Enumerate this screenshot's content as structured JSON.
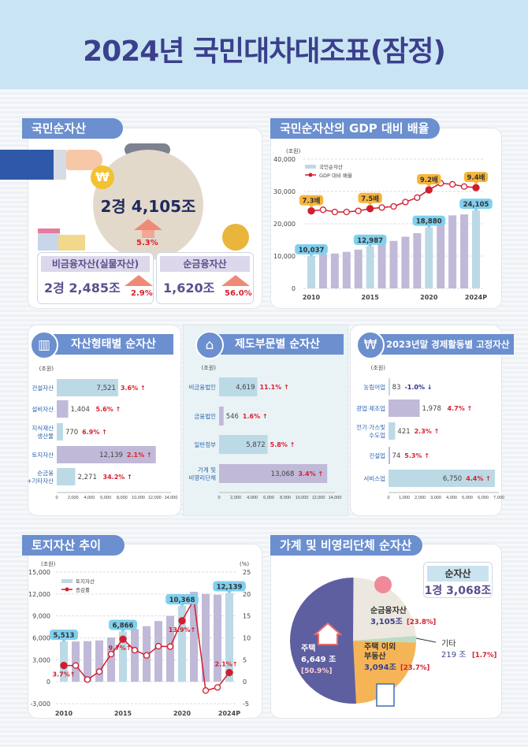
{
  "title": "2024년 국민대차대조표(잠정)",
  "net_assets": {
    "header": "국민순자산",
    "total": "2경 4,105조",
    "total_change": "5.3%",
    "non_financial": {
      "label": "비금융자산(실물자산)",
      "value": "2경 2,485조",
      "change": "2.9%"
    },
    "net_financial": {
      "label": "순금융자산",
      "value": "1,620조",
      "change": "56.0%"
    }
  },
  "panel_headers": {
    "gdp": "국민순자산의 GDP 대비 배율",
    "by_type": "자산형태별 순자산",
    "by_sector": "제도부문별 순자산",
    "by_industry": "2023년말 경제활동별 고정자산",
    "land": "토지자산 추이",
    "household": "가계 및 비영리단체 순자산"
  },
  "colors": {
    "accent": "#6b8fcf",
    "bar_blue": "#bcd9e6",
    "bar_purple": "#c0b9d8",
    "red": "#d8202f",
    "navy": "#3b3f8c"
  },
  "household_total": {
    "label": "순자산",
    "value": "1경 3,068조"
  },
  "chart_data": [
    {
      "id": "gdp",
      "type": "bar+line",
      "title": "국민순자산의 GDP 대비 배율",
      "ylabel": "(조원)",
      "ylim": [
        0,
        40000
      ],
      "yticks": [
        "0",
        "10,000",
        "20,000",
        "30,000",
        "40,000"
      ],
      "x": [
        "2010",
        "2011",
        "2012",
        "2013",
        "2014",
        "2015",
        "2016",
        "2017",
        "2018",
        "2019",
        "2020",
        "2021",
        "2022",
        "2023",
        "2024P"
      ],
      "xtick_labels": [
        "2010",
        "2015",
        "2020",
        "2024P"
      ],
      "bar_series": {
        "name": "국민순자산",
        "values": [
          10037,
          10600,
          10800,
          11300,
          12000,
          12987,
          13900,
          14700,
          16000,
          17100,
          18880,
          21900,
          22600,
          22900,
          24105
        ]
      },
      "line_series": {
        "name": "GDP 대비 배율",
        "unit": "배",
        "values": [
          7.3,
          7.4,
          7.2,
          7.2,
          7.3,
          7.5,
          7.6,
          7.7,
          8.1,
          8.5,
          9.2,
          9.8,
          9.7,
          9.5,
          9.4
        ]
      },
      "bar_labels": {
        "0": "10,037",
        "5": "12,987",
        "10": "18,880",
        "14": "24,105"
      },
      "line_labels": {
        "0": "7.3배",
        "5": "7.5배",
        "10": "9.2배",
        "14": "9.4배"
      },
      "legend": "top-left"
    },
    {
      "id": "by_type",
      "type": "hbar",
      "ylabel": "(조원)",
      "xlim": [
        0,
        14000
      ],
      "xticks": [
        "0",
        "2,000",
        "4,000",
        "6,000",
        "8,000",
        "10,000",
        "12,000",
        "14,000"
      ],
      "categories": [
        "건설자산",
        "설비자산",
        "지식재산\n생산물",
        "토지자산",
        "순금융\n+기타자산"
      ],
      "values": [
        7521,
        1404,
        770,
        12139,
        2271
      ],
      "value_labels": [
        "7,521",
        "1,404",
        "770",
        "12,139",
        "2,271"
      ],
      "changes": [
        "3.6%",
        "5.6%",
        "6.9%",
        "2.1%",
        "34.2%"
      ],
      "direction": [
        "up",
        "up",
        "up",
        "up",
        "up"
      ]
    },
    {
      "id": "by_sector",
      "type": "hbar",
      "ylabel": "(조원)",
      "xlim": [
        0,
        14000
      ],
      "xticks": [
        "0",
        "2,000",
        "4,000",
        "6,000",
        "8,000",
        "10,000",
        "12,000",
        "14,000"
      ],
      "categories": [
        "비금융법인",
        "금융법인",
        "일반정부",
        "가계 및\n비영리단체"
      ],
      "values": [
        4619,
        546,
        5872,
        13068
      ],
      "value_labels": [
        "4,619",
        "546",
        "5,872",
        "13,068"
      ],
      "changes": [
        "11.1%",
        "1.6%",
        "5.8%",
        "3.4%"
      ],
      "direction": [
        "up",
        "up",
        "up",
        "up"
      ]
    },
    {
      "id": "by_industry",
      "type": "hbar",
      "ylabel": "(조원)",
      "xlim": [
        0,
        7000
      ],
      "xticks": [
        "0",
        "1,000",
        "2,000",
        "3,000",
        "4,000",
        "5,000",
        "6,000",
        "7,000"
      ],
      "categories": [
        "농림어업",
        "광업·제조업",
        "전기·가스및\n수도업",
        "건설업",
        "서비스업"
      ],
      "values": [
        83,
        1978,
        421,
        74,
        6750
      ],
      "value_labels": [
        "83",
        "1,978",
        "421",
        "74",
        "6,750"
      ],
      "changes": [
        "-1.0%",
        "4.7%",
        "2.3%",
        "5.3%",
        "4.4%"
      ],
      "direction": [
        "down",
        "up",
        "up",
        "up",
        "up"
      ]
    },
    {
      "id": "land",
      "type": "bar+line",
      "title": "토지자산 추이",
      "ylabel": "(조원)",
      "y2label": "(%)",
      "ylim": [
        -3000,
        15000
      ],
      "y2lim": [
        -5,
        25
      ],
      "yticks": [
        "-3,000",
        "0",
        "3,000",
        "6,000",
        "9,000",
        "12,000",
        "15,000"
      ],
      "y2ticks": [
        "-5",
        "0",
        "5",
        "10",
        "15",
        "20",
        "25"
      ],
      "x": [
        "2010",
        "2011",
        "2012",
        "2013",
        "2014",
        "2015",
        "2016",
        "2017",
        "2018",
        "2019",
        "2020",
        "2021",
        "2022",
        "2023",
        "2024P"
      ],
      "xtick_labels": [
        "2010",
        "2015",
        "2020",
        "2024P"
      ],
      "bar_series": {
        "name": "토지자산",
        "values": [
          5513,
          5500,
          5550,
          5650,
          6050,
          6866,
          7200,
          7600,
          8300,
          9000,
          10368,
          12300,
          12000,
          11900,
          12139
        ]
      },
      "line_series": {
        "name": "증감률",
        "unit": "%",
        "values": [
          3.7,
          3.7,
          0.5,
          2.3,
          6.3,
          9.7,
          7.2,
          6.0,
          8.1,
          8.0,
          13.9,
          18.7,
          -2.0,
          -1.3,
          2.1
        ]
      },
      "bar_labels": {
        "0": "5,513",
        "5": "6,866",
        "10": "10,368",
        "14": "12,139"
      },
      "line_labels": {
        "0": "3.7%",
        "5": "9.7%",
        "10": "13.9%",
        "14": "2.1%"
      },
      "legend": "top-left"
    },
    {
      "id": "household",
      "type": "pie",
      "slices": [
        {
          "name": "순금융자산",
          "value_label": "3,105조",
          "pct": 23.8,
          "color": "#ece8df"
        },
        {
          "name": "기타",
          "value_label": "219 조",
          "pct": 1.7,
          "color": "#b9dcc5"
        },
        {
          "name": "주택 이외\n부동산",
          "value_label": "3,094조",
          "pct": 23.7,
          "color": "#f5b556"
        },
        {
          "name": "주택",
          "value_label": "6,649 조",
          "pct": 50.9,
          "color": "#5e5fa0"
        }
      ]
    }
  ]
}
